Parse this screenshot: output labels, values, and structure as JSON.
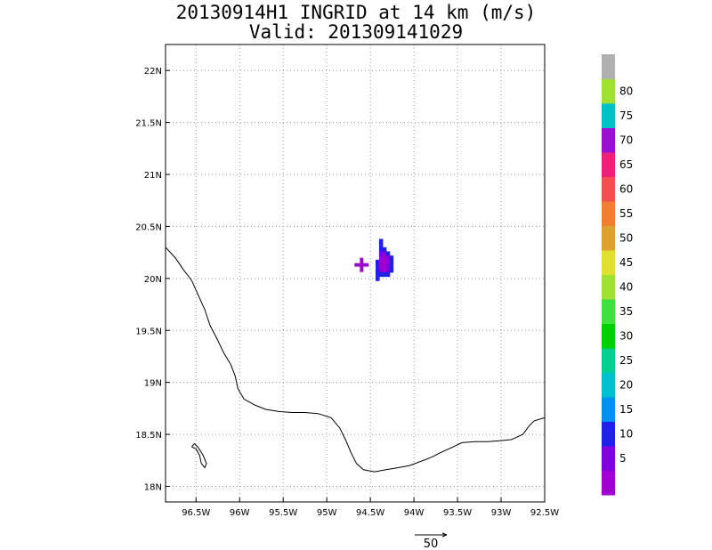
{
  "title": {
    "line1": "20130914H1 INGRID at 14 km (m/s)",
    "line2": "Valid: 201309141029"
  },
  "map": {
    "lon_range": [
      -96.85,
      -92.5
    ],
    "lat_range": [
      17.85,
      22.25
    ],
    "lon_ticks": [
      {
        "value": -96.5,
        "label": "96.5W"
      },
      {
        "value": -96.0,
        "label": "96W"
      },
      {
        "value": -95.5,
        "label": "95.5W"
      },
      {
        "value": -95.0,
        "label": "95W"
      },
      {
        "value": -94.5,
        "label": "94.5W"
      },
      {
        "value": -94.0,
        "label": "94W"
      },
      {
        "value": -93.5,
        "label": "93.5W"
      },
      {
        "value": -93.0,
        "label": "93W"
      },
      {
        "value": -92.5,
        "label": "92.5W"
      }
    ],
    "lat_ticks": [
      {
        "value": 18.0,
        "label": "18N"
      },
      {
        "value": 18.5,
        "label": "18.5N"
      },
      {
        "value": 19.0,
        "label": "19N"
      },
      {
        "value": 19.5,
        "label": "19.5N"
      },
      {
        "value": 20.0,
        "label": "20N"
      },
      {
        "value": 20.5,
        "label": "20.5N"
      },
      {
        "value": 21.0,
        "label": "21N"
      },
      {
        "value": 21.5,
        "label": "21.5N"
      },
      {
        "value": 22.0,
        "label": "22N"
      }
    ],
    "grid": true,
    "center_marker": {
      "lon": -94.6,
      "lat": 20.13,
      "color": "#9a0bd0"
    },
    "wind_cells": [
      {
        "lon": -94.38,
        "lat": 20.36,
        "value": 12
      },
      {
        "lon": -94.38,
        "lat": 20.32,
        "value": 12
      },
      {
        "lon": -94.38,
        "lat": 20.28,
        "value": 12
      },
      {
        "lon": -94.34,
        "lat": 20.28,
        "value": 12
      },
      {
        "lon": -94.38,
        "lat": 20.24,
        "value": 8
      },
      {
        "lon": -94.34,
        "lat": 20.24,
        "value": 6
      },
      {
        "lon": -94.3,
        "lat": 20.24,
        "value": 10
      },
      {
        "lon": -94.38,
        "lat": 20.2,
        "value": 6
      },
      {
        "lon": -94.34,
        "lat": 20.2,
        "value": 3
      },
      {
        "lon": -94.3,
        "lat": 20.2,
        "value": 8
      },
      {
        "lon": -94.26,
        "lat": 20.2,
        "value": 12
      },
      {
        "lon": -94.42,
        "lat": 20.16,
        "value": 12
      },
      {
        "lon": -94.38,
        "lat": 20.16,
        "value": 4
      },
      {
        "lon": -94.34,
        "lat": 20.16,
        "value": 2
      },
      {
        "lon": -94.3,
        "lat": 20.16,
        "value": 4
      },
      {
        "lon": -94.26,
        "lat": 20.16,
        "value": 12
      },
      {
        "lon": -94.42,
        "lat": 20.12,
        "value": 12
      },
      {
        "lon": -94.38,
        "lat": 20.12,
        "value": 3
      },
      {
        "lon": -94.34,
        "lat": 20.12,
        "value": 2
      },
      {
        "lon": -94.3,
        "lat": 20.12,
        "value": 6
      },
      {
        "lon": -94.26,
        "lat": 20.12,
        "value": 12
      },
      {
        "lon": -94.42,
        "lat": 20.08,
        "value": 12
      },
      {
        "lon": -94.38,
        "lat": 20.08,
        "value": 6
      },
      {
        "lon": -94.34,
        "lat": 20.08,
        "value": 4
      },
      {
        "lon": -94.3,
        "lat": 20.08,
        "value": 8
      },
      {
        "lon": -94.26,
        "lat": 20.08,
        "value": 12
      },
      {
        "lon": -94.42,
        "lat": 20.04,
        "value": 12
      },
      {
        "lon": -94.38,
        "lat": 20.04,
        "value": 10
      },
      {
        "lon": -94.34,
        "lat": 20.04,
        "value": 10
      },
      {
        "lon": -94.3,
        "lat": 20.04,
        "value": 12
      },
      {
        "lon": -94.42,
        "lat": 20.0,
        "value": 12
      }
    ],
    "coastline_main": [
      [
        -96.85,
        20.3
      ],
      [
        -96.74,
        20.2
      ],
      [
        -96.65,
        20.09
      ],
      [
        -96.55,
        19.98
      ],
      [
        -96.48,
        19.85
      ],
      [
        -96.4,
        19.7
      ],
      [
        -96.34,
        19.55
      ],
      [
        -96.26,
        19.42
      ],
      [
        -96.18,
        19.28
      ],
      [
        -96.1,
        19.17
      ],
      [
        -96.05,
        19.06
      ],
      [
        -96.02,
        18.94
      ],
      [
        -95.95,
        18.84
      ],
      [
        -95.82,
        18.78
      ],
      [
        -95.7,
        18.74
      ],
      [
        -95.55,
        18.72
      ],
      [
        -95.4,
        18.71
      ],
      [
        -95.25,
        18.71
      ],
      [
        -95.1,
        18.7
      ],
      [
        -94.95,
        18.66
      ],
      [
        -94.85,
        18.56
      ],
      [
        -94.78,
        18.44
      ],
      [
        -94.72,
        18.32
      ],
      [
        -94.66,
        18.22
      ],
      [
        -94.58,
        18.16
      ],
      [
        -94.45,
        18.14
      ],
      [
        -94.32,
        18.16
      ],
      [
        -94.18,
        18.18
      ],
      [
        -94.05,
        18.2
      ],
      [
        -93.92,
        18.24
      ],
      [
        -93.8,
        18.28
      ],
      [
        -93.68,
        18.33
      ],
      [
        -93.55,
        18.38
      ],
      [
        -93.45,
        18.42
      ],
      [
        -93.3,
        18.43
      ],
      [
        -93.15,
        18.43
      ],
      [
        -93.0,
        18.44
      ],
      [
        -92.88,
        18.45
      ],
      [
        -92.75,
        18.5
      ],
      [
        -92.68,
        18.58
      ],
      [
        -92.62,
        18.63
      ],
      [
        -92.5,
        18.66
      ]
    ],
    "coastline_island": [
      [
        -96.55,
        18.38
      ],
      [
        -96.5,
        18.36
      ],
      [
        -96.46,
        18.3
      ],
      [
        -96.44,
        18.22
      ],
      [
        -96.4,
        18.18
      ],
      [
        -96.38,
        18.22
      ],
      [
        -96.42,
        18.3
      ],
      [
        -96.48,
        18.38
      ],
      [
        -96.52,
        18.41
      ],
      [
        -96.55,
        18.38
      ]
    ],
    "colorbar": {
      "colors": [
        "#a000d0",
        "#8000e0",
        "#2020e8",
        "#0090f0",
        "#00c0d0",
        "#00d090",
        "#00d000",
        "#40e040",
        "#a0e030",
        "#e0e030",
        "#e0a030",
        "#f08030",
        "#f05050",
        "#f0207a",
        "#9a10d0",
        "#00c0c8",
        "#a0e030",
        "#b0b0b0"
      ],
      "labels": [
        "5",
        "10",
        "15",
        "20",
        "25",
        "30",
        "35",
        "40",
        "45",
        "50",
        "55",
        "60",
        "65",
        "70",
        "75",
        "80"
      ]
    },
    "reference_vector": {
      "label": "50"
    }
  }
}
